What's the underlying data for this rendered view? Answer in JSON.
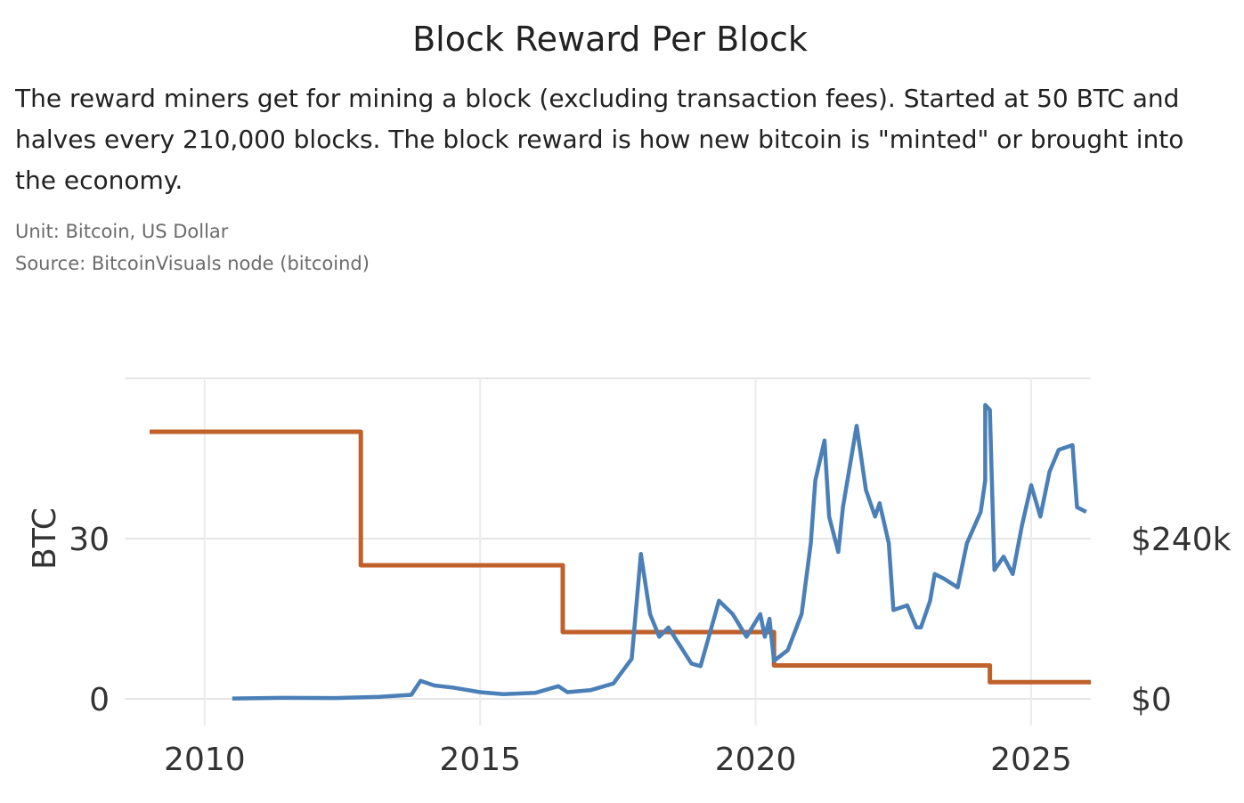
{
  "header": {
    "title": "Block Reward Per Block",
    "description": "The reward miners get for mining a block (excluding transaction fees). Started at 50 BTC and halves every 210,000 blocks. The block reward is how new bitcoin is \"minted\" or brought into the economy.",
    "unit": "Unit:  Bitcoin, US Dollar",
    "source": "Source:  BitcoinVisuals node (bitcoind)"
  },
  "chart_data": {
    "type": "line",
    "title": "Block Reward Per Block",
    "xlabel": "",
    "ylabel": "BTC",
    "y2label": "",
    "xlim": [
      "2009-01",
      "2026-02"
    ],
    "x_ticks": [
      "2010",
      "2015",
      "2020",
      "2025"
    ],
    "y_ticks": [
      {
        "value": 0,
        "label": "0"
      },
      {
        "value": 30,
        "label": "30"
      }
    ],
    "y2_ticks": [
      {
        "value": 0,
        "label": "$0"
      },
      {
        "value": 240000,
        "label": "$240k"
      }
    ],
    "ylim": [
      0,
      60
    ],
    "y2lim": [
      0,
      480000
    ],
    "grid": true,
    "legend": "none",
    "series": [
      {
        "axis": "left",
        "color": "#c0602a",
        "step": true,
        "points": [
          [
            "2009-01",
            50
          ],
          [
            "2012-11",
            50
          ],
          [
            "2012-11",
            25
          ],
          [
            "2016-07",
            25
          ],
          [
            "2016-07",
            12.5
          ],
          [
            "2020-05",
            12.5
          ],
          [
            "2020-05",
            6.25
          ],
          [
            "2024-04",
            6.25
          ],
          [
            "2024-04",
            3.125
          ],
          [
            "2026-02",
            3.125
          ]
        ]
      },
      {
        "axis": "right",
        "color": "#4a7fb8",
        "points": [
          [
            "2010-07",
            500
          ],
          [
            "2011-06",
            1500
          ],
          [
            "2012-06",
            1200
          ],
          [
            "2013-03",
            3000
          ],
          [
            "2013-10",
            6000
          ],
          [
            "2013-12",
            27000
          ],
          [
            "2014-03",
            20000
          ],
          [
            "2014-07",
            17000
          ],
          [
            "2015-01",
            10000
          ],
          [
            "2015-06",
            7000
          ],
          [
            "2016-01",
            9000
          ],
          [
            "2016-06",
            19000
          ],
          [
            "2016-08",
            10000
          ],
          [
            "2017-01",
            13000
          ],
          [
            "2017-06",
            23000
          ],
          [
            "2017-10",
            60000
          ],
          [
            "2017-12",
            217000
          ],
          [
            "2018-02",
            127000
          ],
          [
            "2018-04",
            93000
          ],
          [
            "2018-06",
            107000
          ],
          [
            "2018-11",
            53000
          ],
          [
            "2019-01",
            49000
          ],
          [
            "2019-05",
            147000
          ],
          [
            "2019-08",
            127000
          ],
          [
            "2019-11",
            93000
          ],
          [
            "2020-02",
            127000
          ],
          [
            "2020-03",
            93000
          ],
          [
            "2020-04",
            120000
          ],
          [
            "2020-05",
            57000
          ],
          [
            "2020-08",
            73000
          ],
          [
            "2020-11",
            127000
          ],
          [
            "2021-01",
            233000
          ],
          [
            "2021-02",
            327000
          ],
          [
            "2021-04",
            387000
          ],
          [
            "2021-05",
            273000
          ],
          [
            "2021-07",
            220000
          ],
          [
            "2021-08",
            287000
          ],
          [
            "2021-11",
            409000
          ],
          [
            "2022-01",
            313000
          ],
          [
            "2022-03",
            273000
          ],
          [
            "2022-04",
            293000
          ],
          [
            "2022-06",
            233000
          ],
          [
            "2022-07",
            133000
          ],
          [
            "2022-10",
            140000
          ],
          [
            "2022-12",
            107000
          ],
          [
            "2023-01",
            107000
          ],
          [
            "2023-03",
            147000
          ],
          [
            "2023-04",
            187000
          ],
          [
            "2023-06",
            180000
          ],
          [
            "2023-09",
            167000
          ],
          [
            "2023-11",
            233000
          ],
          [
            "2024-02",
            280000
          ],
          [
            "2024-03",
            327000
          ],
          [
            "2024-03",
            440000
          ],
          [
            "2024-04",
            433000
          ],
          [
            "2024-05",
            193000
          ],
          [
            "2024-07",
            213000
          ],
          [
            "2024-09",
            187000
          ],
          [
            "2024-11",
            260000
          ],
          [
            "2025-01",
            320000
          ],
          [
            "2025-03",
            273000
          ],
          [
            "2025-05",
            340000
          ],
          [
            "2025-07",
            373000
          ],
          [
            "2025-10",
            380000
          ],
          [
            "2025-11",
            287000
          ],
          [
            "2026-01",
            280000
          ]
        ]
      }
    ]
  }
}
